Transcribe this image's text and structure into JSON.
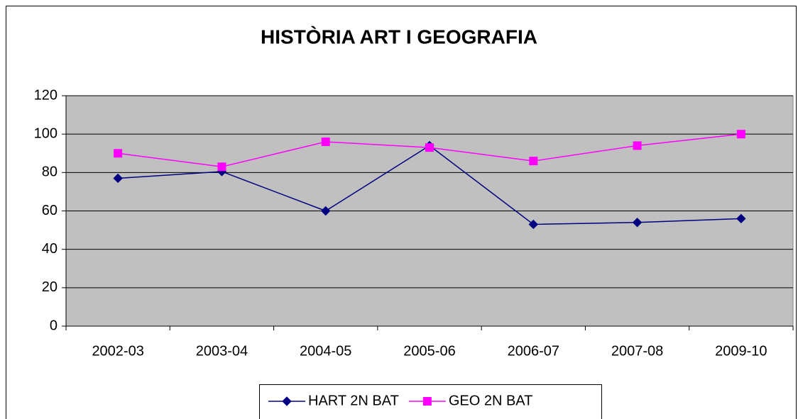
{
  "chart_data": {
    "type": "line",
    "title": "HISTÒRIA ART I GEOGRAFIA",
    "categories": [
      "2002-03",
      "2003-04",
      "2004-05",
      "2005-06",
      "2006-07",
      "2007-08",
      "2009-10"
    ],
    "series": [
      {
        "name": "HART 2N BAT",
        "color": "#000080",
        "marker": "diamond",
        "values": [
          77,
          80.5,
          60,
          94,
          53,
          54,
          56
        ]
      },
      {
        "name": "GEO 2N BAT",
        "color": "#ff00ff",
        "marker": "square",
        "values": [
          90,
          83,
          96,
          93,
          86,
          94,
          100
        ]
      }
    ],
    "ylim": [
      0,
      120
    ],
    "yticks": [
      0,
      20,
      40,
      60,
      80,
      100,
      120
    ],
    "grid": true,
    "legend": "bottom"
  }
}
